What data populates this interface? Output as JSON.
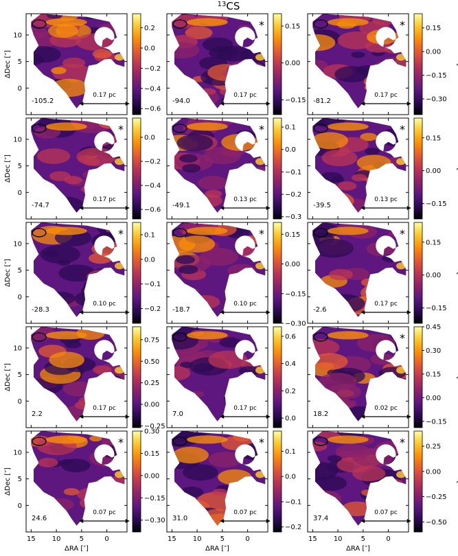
{
  "chart_data": {
    "type": "heatmap",
    "title": "13CS",
    "title_sup": "13",
    "title_main": "CS",
    "xlabel": "ΔRA [″]",
    "ylabel": "ΔDec [″]",
    "colorbar_label": "τ",
    "xlim": [
      16,
      -4
    ],
    "ylim": [
      -5,
      14
    ],
    "xticks": [
      15,
      10,
      5,
      0
    ],
    "yticks": [
      0,
      5,
      10
    ],
    "scalebar_length_arcsec": 5,
    "colormap": [
      "#000004",
      "#2c0b55",
      "#5d177f",
      "#8d2369",
      "#bb3654",
      "#e45a31",
      "#f98e09",
      "#fac62d",
      "#fcffa4"
    ],
    "panels": [
      {
        "velocity": "-105.2",
        "scalebar": "0.17 pc",
        "star": false,
        "cbar_min": -0.66,
        "cbar_max": 0.34,
        "cbar_ticks": [
          -0.6,
          -0.4,
          -0.2,
          0.0,
          0.2
        ],
        "cbar_labels": [
          "−0.6",
          "−0.4",
          "−0.2",
          "0.0",
          "0.2"
        ]
      },
      {
        "velocity": "-94.0",
        "scalebar": "0.17 pc",
        "star": true,
        "cbar_min": -0.21,
        "cbar_max": 0.2,
        "cbar_ticks": [
          -0.15,
          0.0,
          0.15
        ],
        "cbar_labels": [
          "−0.15",
          "0.00",
          "0.15"
        ]
      },
      {
        "velocity": "-81.2",
        "scalebar": "0.17 pc",
        "star": true,
        "cbar_min": -0.4,
        "cbar_max": 0.24,
        "cbar_ticks": [
          -0.3,
          -0.15,
          0.0,
          0.15
        ],
        "cbar_labels": [
          "−0.30",
          "−0.15",
          "0.00",
          "0.15"
        ]
      },
      {
        "velocity": "-74.7",
        "scalebar": "0.17 pc",
        "star": true,
        "cbar_min": -0.68,
        "cbar_max": 0.16,
        "cbar_ticks": [
          -0.6,
          -0.4,
          -0.2,
          0.0
        ],
        "cbar_labels": [
          "−0.6",
          "−0.4",
          "−0.2",
          "0.0"
        ]
      },
      {
        "velocity": "-49.1",
        "scalebar": "0.13 pc",
        "star": true,
        "cbar_min": -0.31,
        "cbar_max": 0.14,
        "cbar_ticks": [
          -0.3,
          -0.2,
          -0.1,
          0.0,
          0.1
        ],
        "cbar_labels": [
          "−0.3",
          "−0.2",
          "−0.1",
          "0.0",
          "0.1"
        ]
      },
      {
        "velocity": "-39.5",
        "scalebar": "0.13 pc",
        "star": true,
        "cbar_min": -0.22,
        "cbar_max": 0.24,
        "cbar_ticks": [
          -0.15,
          0.0,
          0.15
        ],
        "cbar_labels": [
          "−0.15",
          "0.00",
          "0.15"
        ]
      },
      {
        "velocity": "-28.3",
        "scalebar": "0.10 pc",
        "star": true,
        "cbar_min": -0.26,
        "cbar_max": 0.15,
        "cbar_ticks": [
          -0.2,
          -0.1,
          0.0,
          0.1
        ],
        "cbar_labels": [
          "−0.2",
          "−0.1",
          "0.0",
          "0.1"
        ]
      },
      {
        "velocity": "-18.7",
        "scalebar": "0.10 pc",
        "star": true,
        "cbar_min": -0.3,
        "cbar_max": 0.21,
        "cbar_ticks": [
          -0.3,
          -0.15,
          0.0,
          0.15
        ],
        "cbar_labels": [
          "−0.30",
          "−0.15",
          "0.00",
          "0.15"
        ]
      },
      {
        "velocity": "-2.6",
        "scalebar": "0.17 pc",
        "star": true,
        "cbar_min": -0.22,
        "cbar_max": 0.24,
        "cbar_ticks": [
          -0.15,
          0.0,
          0.15
        ],
        "cbar_labels": [
          "−0.15",
          "0.00",
          "0.15"
        ]
      },
      {
        "velocity": "2.2",
        "scalebar": "0.17 pc",
        "star": false,
        "cbar_min": -0.27,
        "cbar_max": 0.9,
        "cbar_ticks": [
          -0.25,
          0.0,
          0.25,
          0.5,
          0.75
        ],
        "cbar_labels": [
          "−0.25",
          "0.00",
          "0.25",
          "0.50",
          "0.75"
        ]
      },
      {
        "velocity": "7.0",
        "scalebar": "0.17 pc",
        "star": false,
        "cbar_min": -0.07,
        "cbar_max": 0.67,
        "cbar_ticks": [
          0.0,
          0.2,
          0.4,
          0.6
        ],
        "cbar_labels": [
          "0.0",
          "0.2",
          "0.4",
          "0.6"
        ]
      },
      {
        "velocity": "18.2",
        "scalebar": "0.02 pc",
        "star": true,
        "cbar_min": -0.19,
        "cbar_max": 0.45,
        "cbar_ticks": [
          -0.15,
          0.0,
          0.15,
          0.3,
          0.45
        ],
        "cbar_labels": [
          "−0.15",
          "0.00",
          "0.15",
          "0.30",
          "0.45"
        ]
      },
      {
        "velocity": "24.6",
        "scalebar": "0.07 pc",
        "star": true,
        "cbar_min": -0.38,
        "cbar_max": 0.3,
        "cbar_ticks": [
          -0.3,
          -0.15,
          0.0,
          0.15,
          0.3
        ],
        "cbar_labels": [
          "−0.30",
          "−0.15",
          "0.00",
          "0.15",
          "0.30"
        ]
      },
      {
        "velocity": "31.0",
        "scalebar": "0.07 pc",
        "star": true,
        "cbar_min": -0.22,
        "cbar_max": 0.18,
        "cbar_ticks": [
          -0.2,
          -0.1,
          0.0,
          0.1
        ],
        "cbar_labels": [
          "−0.2",
          "−0.1",
          "0.0",
          "0.1"
        ]
      },
      {
        "velocity": "37.4",
        "scalebar": "0.07 pc",
        "star": true,
        "cbar_min": -0.6,
        "cbar_max": 0.4,
        "cbar_ticks": [
          -0.5,
          -0.25,
          0.0,
          0.25
        ],
        "cbar_labels": [
          "−0.50",
          "−0.25",
          "0.00",
          "0.25"
        ]
      }
    ]
  }
}
